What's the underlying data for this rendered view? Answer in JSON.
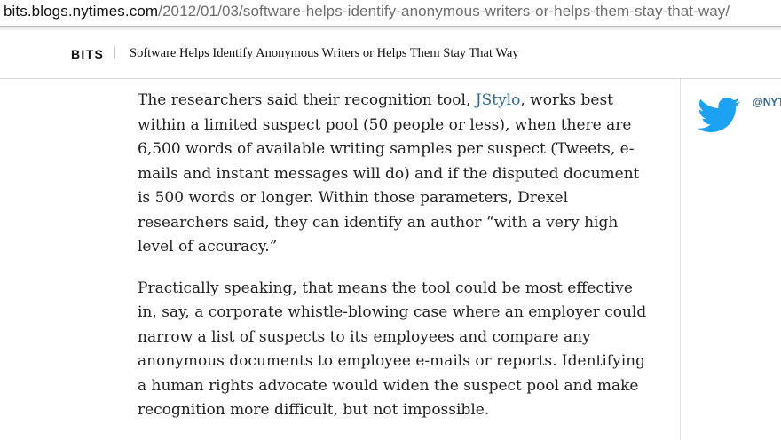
{
  "browser": {
    "url_host": "bits.blogs.nytimes.com",
    "url_path": "/2012/01/03/software-helps-identify-anonymous-writers-or-helps-them-stay-that-way/"
  },
  "header": {
    "section": "BITS",
    "headline": "Software Helps Identify Anonymous Writers or Helps Them Stay That Way"
  },
  "article": {
    "p1_before_link": "The researchers said their recognition tool, ",
    "p1_link": "JStylo",
    "p1_after_link": ", works best within a limited suspect pool (50 people or less), when there are 6,500 words of available writing samples per suspect (Tweets, e-mails and instant messages will do) and if the disputed document is 500 words or longer. Within those parameters, Drexel researchers said, they can identify an author “with a very high level of accuracy.”",
    "p2": "Practically speaking, that means the tool could be most effective in, say, a corporate whistle-blowing case where an employer could narrow a list of suspects to its employees and compare any anonymous documents to employee e-mails or reports. Identifying a human rights advocate would widen the suspect pool and make recognition more difficult, but not impossible."
  },
  "rail": {
    "twitter_handle": "@NYT",
    "icon": "twitter-bird-icon"
  },
  "colors": {
    "link": "#326891",
    "twitter_blue": "#1da1f2",
    "text": "#222222"
  }
}
